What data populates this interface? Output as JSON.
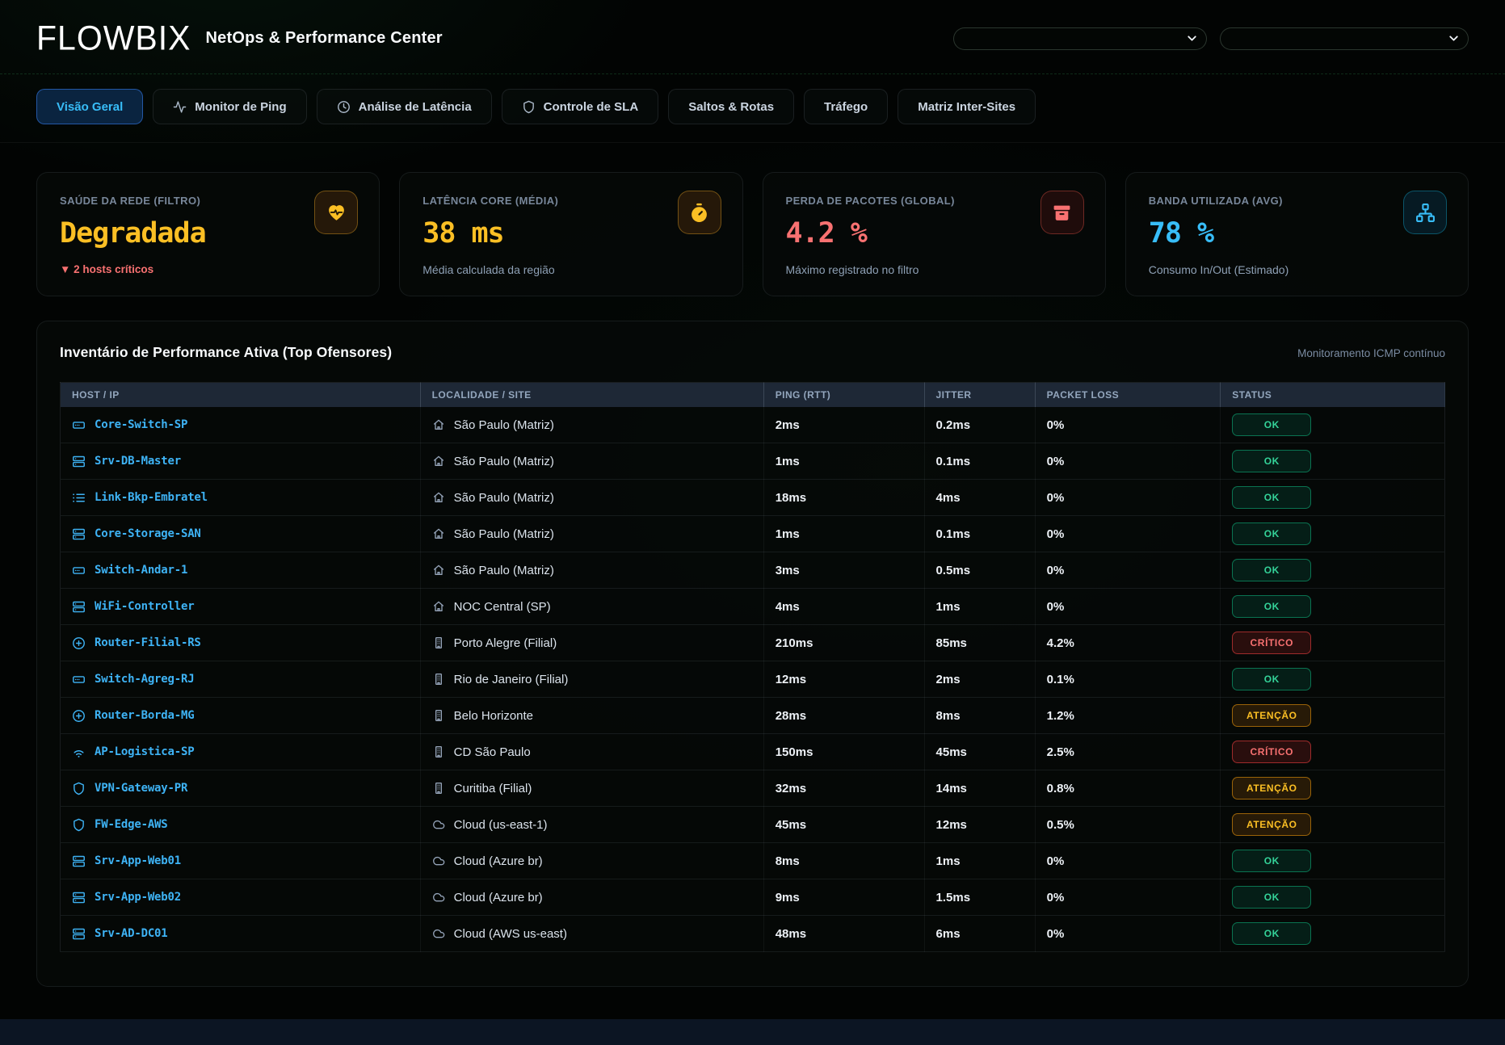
{
  "header": {
    "logo": "FLOWBIX",
    "title": "NetOps & Performance Center",
    "filters": [
      {
        "name": "filter-select-1",
        "value": ""
      },
      {
        "name": "filter-select-2",
        "value": ""
      }
    ]
  },
  "tabs": [
    {
      "label": "Visão Geral",
      "icon": null,
      "active": true
    },
    {
      "label": "Monitor de Ping",
      "icon": "activity",
      "active": false
    },
    {
      "label": "Análise de Latência",
      "icon": "clock",
      "active": false
    },
    {
      "label": "Controle de SLA",
      "icon": "shield",
      "active": false
    },
    {
      "label": "Saltos & Rotas",
      "icon": null,
      "active": false
    },
    {
      "label": "Tráfego",
      "icon": null,
      "active": false
    },
    {
      "label": "Matriz Inter-Sites",
      "icon": null,
      "active": false
    }
  ],
  "kpis": [
    {
      "label": "SAÚDE DA REDE (FILTRO)",
      "value": "Degradada",
      "sub": "▼ 2 hosts críticos",
      "sub_alert": true,
      "tone": "amber",
      "icon": "heart-pulse"
    },
    {
      "label": "LATÊNCIA CORE (MÉDIA)",
      "value": "38 ms",
      "sub": "Média calculada da região",
      "sub_alert": false,
      "tone": "amber",
      "icon": "timer"
    },
    {
      "label": "PERDA DE PACOTES (GLOBAL)",
      "value": "4.2 %",
      "sub": "Máximo registrado no filtro",
      "sub_alert": false,
      "tone": "red",
      "icon": "archive"
    },
    {
      "label": "BANDA UTILIZADA (AVG)",
      "value": "78 %",
      "sub": "Consumo In/Out (Estimado)",
      "sub_alert": false,
      "tone": "blue",
      "icon": "network"
    }
  ],
  "table": {
    "title": "Inventário de Performance Ativa (Top Ofensores)",
    "note": "Monitoramento ICMP contínuo",
    "columns": [
      "HOST / IP",
      "LOCALIDADE / SITE",
      "PING (RTT)",
      "JITTER",
      "PACKET LOSS",
      "STATUS"
    ],
    "rows": [
      {
        "host": "Core-Switch-SP",
        "host_icon": "switch",
        "site": "São Paulo (Matriz)",
        "site_icon": "home",
        "ping": "2ms",
        "jitter": "0.2ms",
        "loss": "0%",
        "status": "OK",
        "level": "ok"
      },
      {
        "host": "Srv-DB-Master",
        "host_icon": "server",
        "site": "São Paulo (Matriz)",
        "site_icon": "home",
        "ping": "1ms",
        "jitter": "0.1ms",
        "loss": "0%",
        "status": "OK",
        "level": "ok"
      },
      {
        "host": "Link-Bkp-Embratel",
        "host_icon": "list",
        "site": "São Paulo (Matriz)",
        "site_icon": "home",
        "ping": "18ms",
        "jitter": "4ms",
        "loss": "0%",
        "status": "OK",
        "level": "ok"
      },
      {
        "host": "Core-Storage-SAN",
        "host_icon": "server",
        "site": "São Paulo (Matriz)",
        "site_icon": "home",
        "ping": "1ms",
        "jitter": "0.1ms",
        "loss": "0%",
        "status": "OK",
        "level": "ok"
      },
      {
        "host": "Switch-Andar-1",
        "host_icon": "switch",
        "site": "São Paulo (Matriz)",
        "site_icon": "home",
        "ping": "3ms",
        "jitter": "0.5ms",
        "loss": "0%",
        "status": "OK",
        "level": "ok"
      },
      {
        "host": "WiFi-Controller",
        "host_icon": "server",
        "site": "NOC Central (SP)",
        "site_icon": "home",
        "ping": "4ms",
        "jitter": "1ms",
        "loss": "0%",
        "status": "OK",
        "level": "ok"
      },
      {
        "host": "Router-Filial-RS",
        "host_icon": "router",
        "site": "Porto Alegre (Filial)",
        "site_icon": "building",
        "ping": "210ms",
        "jitter": "85ms",
        "loss": "4.2%",
        "status": "CRÍTICO",
        "level": "critical"
      },
      {
        "host": "Switch-Agreg-RJ",
        "host_icon": "switch",
        "site": "Rio de Janeiro (Filial)",
        "site_icon": "building",
        "ping": "12ms",
        "jitter": "2ms",
        "loss": "0.1%",
        "status": "OK",
        "level": "ok"
      },
      {
        "host": "Router-Borda-MG",
        "host_icon": "router",
        "site": "Belo Horizonte",
        "site_icon": "building",
        "ping": "28ms",
        "jitter": "8ms",
        "loss": "1.2%",
        "status": "ATENÇÃO",
        "level": "warning"
      },
      {
        "host": "AP-Logistica-SP",
        "host_icon": "wifi",
        "site": "CD São Paulo",
        "site_icon": "building",
        "ping": "150ms",
        "jitter": "45ms",
        "loss": "2.5%",
        "status": "CRÍTICO",
        "level": "critical"
      },
      {
        "host": "VPN-Gateway-PR",
        "host_icon": "shield",
        "site": "Curitiba (Filial)",
        "site_icon": "building",
        "ping": "32ms",
        "jitter": "14ms",
        "loss": "0.8%",
        "status": "ATENÇÃO",
        "level": "warning"
      },
      {
        "host": "FW-Edge-AWS",
        "host_icon": "shield",
        "site": "Cloud (us-east-1)",
        "site_icon": "cloud",
        "ping": "45ms",
        "jitter": "12ms",
        "loss": "0.5%",
        "status": "ATENÇÃO",
        "level": "warning"
      },
      {
        "host": "Srv-App-Web01",
        "host_icon": "server",
        "site": "Cloud (Azure br)",
        "site_icon": "cloud",
        "ping": "8ms",
        "jitter": "1ms",
        "loss": "0%",
        "status": "OK",
        "level": "ok"
      },
      {
        "host": "Srv-App-Web02",
        "host_icon": "server",
        "site": "Cloud (Azure br)",
        "site_icon": "cloud",
        "ping": "9ms",
        "jitter": "1.5ms",
        "loss": "0%",
        "status": "OK",
        "level": "ok"
      },
      {
        "host": "Srv-AD-DC01",
        "host_icon": "server",
        "site": "Cloud (AWS us-east)",
        "site_icon": "cloud",
        "ping": "48ms",
        "jitter": "6ms",
        "loss": "0%",
        "status": "OK",
        "level": "ok"
      }
    ]
  },
  "theme": {
    "accent_blue": "#38bdf8",
    "accent_amber": "#fbbf24",
    "accent_red": "#f87171",
    "accent_green": "#34d399",
    "header_bg": "#1e2836",
    "page_bg": "#020403"
  }
}
